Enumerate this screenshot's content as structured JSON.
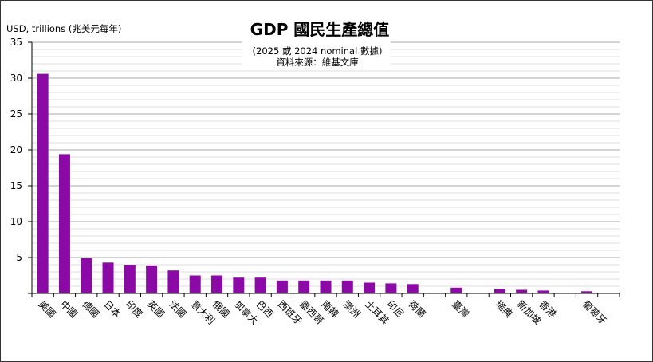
{
  "chart_data": {
    "type": "bar",
    "title": "GDP 國民生產總值",
    "subtitle": "(2025 或 2024 nominal 數據)",
    "source": "資料來源：維基文庫",
    "ylabel": "USD, trillions (兆美元每年)",
    "xlabel": "",
    "ylim": [
      0,
      35
    ],
    "yticks": [
      0,
      5,
      10,
      15,
      20,
      25,
      30,
      35
    ],
    "minor_grid_step": 1,
    "grid": true,
    "legend": "none",
    "bar_color": "#8b0aa5",
    "slots": 27,
    "categories": [
      "美國",
      "中國",
      "德國",
      "日本",
      "印度",
      "英國",
      "法國",
      "意大利",
      "俄國",
      "加拿大",
      "巴西",
      "西班牙",
      "墨西哥",
      "南韓",
      "澳洲",
      "土耳其",
      "印尼",
      "荷蘭",
      "臺灣",
      "瑞典",
      "新加坡",
      "香港",
      "葡萄牙"
    ],
    "slot_index": [
      0,
      1,
      2,
      3,
      4,
      5,
      6,
      7,
      8,
      9,
      10,
      11,
      12,
      13,
      14,
      15,
      16,
      17,
      19,
      21,
      22,
      23,
      25
    ],
    "values": [
      30.6,
      19.4,
      4.9,
      4.3,
      4.0,
      3.9,
      3.2,
      2.5,
      2.5,
      2.2,
      2.2,
      1.8,
      1.8,
      1.8,
      1.8,
      1.5,
      1.4,
      1.3,
      0.8,
      0.6,
      0.5,
      0.4,
      0.3
    ]
  }
}
